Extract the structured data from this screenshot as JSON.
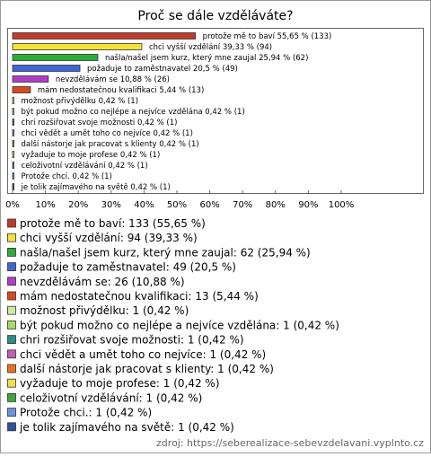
{
  "chart_data": {
    "type": "bar",
    "orientation": "horizontal",
    "title": "Proč se dále vzděláváte?",
    "values": [
      55.65,
      39.33,
      25.94,
      20.5,
      10.88,
      5.44,
      0.42,
      0.42,
      0.42,
      0.42,
      0.42,
      0.42,
      0.42,
      0.42,
      0.42
    ],
    "value_labels": [
      "protože mě to baví 55,65 % (133)",
      "chci vyšší vzdělání 39,33 % (94)",
      "našla/našel jsem kurz, který mne zaujal 25,94 % (62)",
      "požaduje to zaměstnavatel 20,5 % (49)",
      "nevzdělávám se 10,88 % (26)",
      "mám nedostatečnou kvalifikaci 5,44 % (13)",
      "možnost přivýdělku 0,42 % (1)",
      "být pokud možno co nejlépe a nejvíce vzdělána 0,42 % (1)",
      "chri rozšiřovat svoje možnosti 0,42 % (1)",
      "chci vědět a umět toho co nejvíce 0,42 % (1)",
      "další nástorje jak pracovat s klienty 0,42 % (1)",
      "vyžaduje to moje profese 0,42 % (1)",
      "celoživotní vzdělávání 0,42 % (1)",
      "Protože chci. 0,42 % (1)",
      "je tolik zajímavého na světě 0,42 % (1)"
    ],
    "legend_labels": [
      "protože mě to baví: 133 (55,65 %)",
      "chci vyšší vzdělání: 94 (39,33 %)",
      "našla/našel jsem kurz, který mne zaujal: 62 (25,94 %)",
      "požaduje to zaměstnavatel: 49 (20,5 %)",
      "nevzdělávám se: 26 (10,88 %)",
      "mám nedostatečnou kvalifikaci: 13 (5,44 %)",
      "možnost přivýdělku: 1 (0,42 %)",
      "být pokud možno co nejlépe a nejvíce vzdělána: 1 (0,42 %)",
      "chri rozšiřovat svoje možnosti: 1 (0,42 %)",
      "chci vědět a umět toho co nejvíce: 1 (0,42 %)",
      "další nástorje jak pracovat s klienty: 1 (0,42 %)",
      "vyžaduje to moje profese: 1 (0,42 %)",
      "celoživotní vzdělávání: 1 (0,42 %)",
      "Protože chci.: 1 (0,42 %)",
      "je tolik zajímavého na světě: 1 (0,42 %)"
    ],
    "colors": [
      "#c0392b",
      "#f2e33a",
      "#2eaa3a",
      "#3f64d6",
      "#b13cc4",
      "#d9491f",
      "#cde8a0",
      "#a6d96a",
      "#2b8a8a",
      "#c061b4",
      "#e8731f",
      "#efe04a",
      "#3ea43e",
      "#6f8fe0",
      "#30509e"
    ],
    "xlim": [
      0,
      100
    ],
    "xticks": [
      {
        "value": 0,
        "label": "0%"
      },
      {
        "value": 10,
        "label": "10%"
      },
      {
        "value": 20,
        "label": "20%"
      },
      {
        "value": 30,
        "label": "30%"
      },
      {
        "value": 40,
        "label": "40%"
      },
      {
        "value": 50,
        "label": "50%"
      },
      {
        "value": 60,
        "label": "60%"
      },
      {
        "value": 70,
        "label": "70%"
      },
      {
        "value": 80,
        "label": "80%"
      },
      {
        "value": 90,
        "label": "90%"
      },
      {
        "value": 100,
        "label": "100%"
      }
    ],
    "grid": false,
    "source": "zdroj: https://seberealizace-sebevzdelavani.vyplnto.cz"
  }
}
